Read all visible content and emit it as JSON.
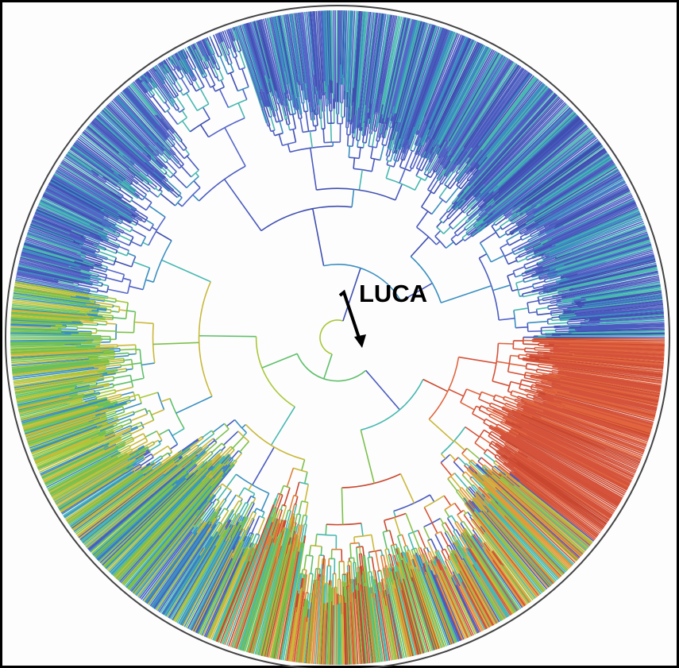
{
  "label": "LUCA"
}
